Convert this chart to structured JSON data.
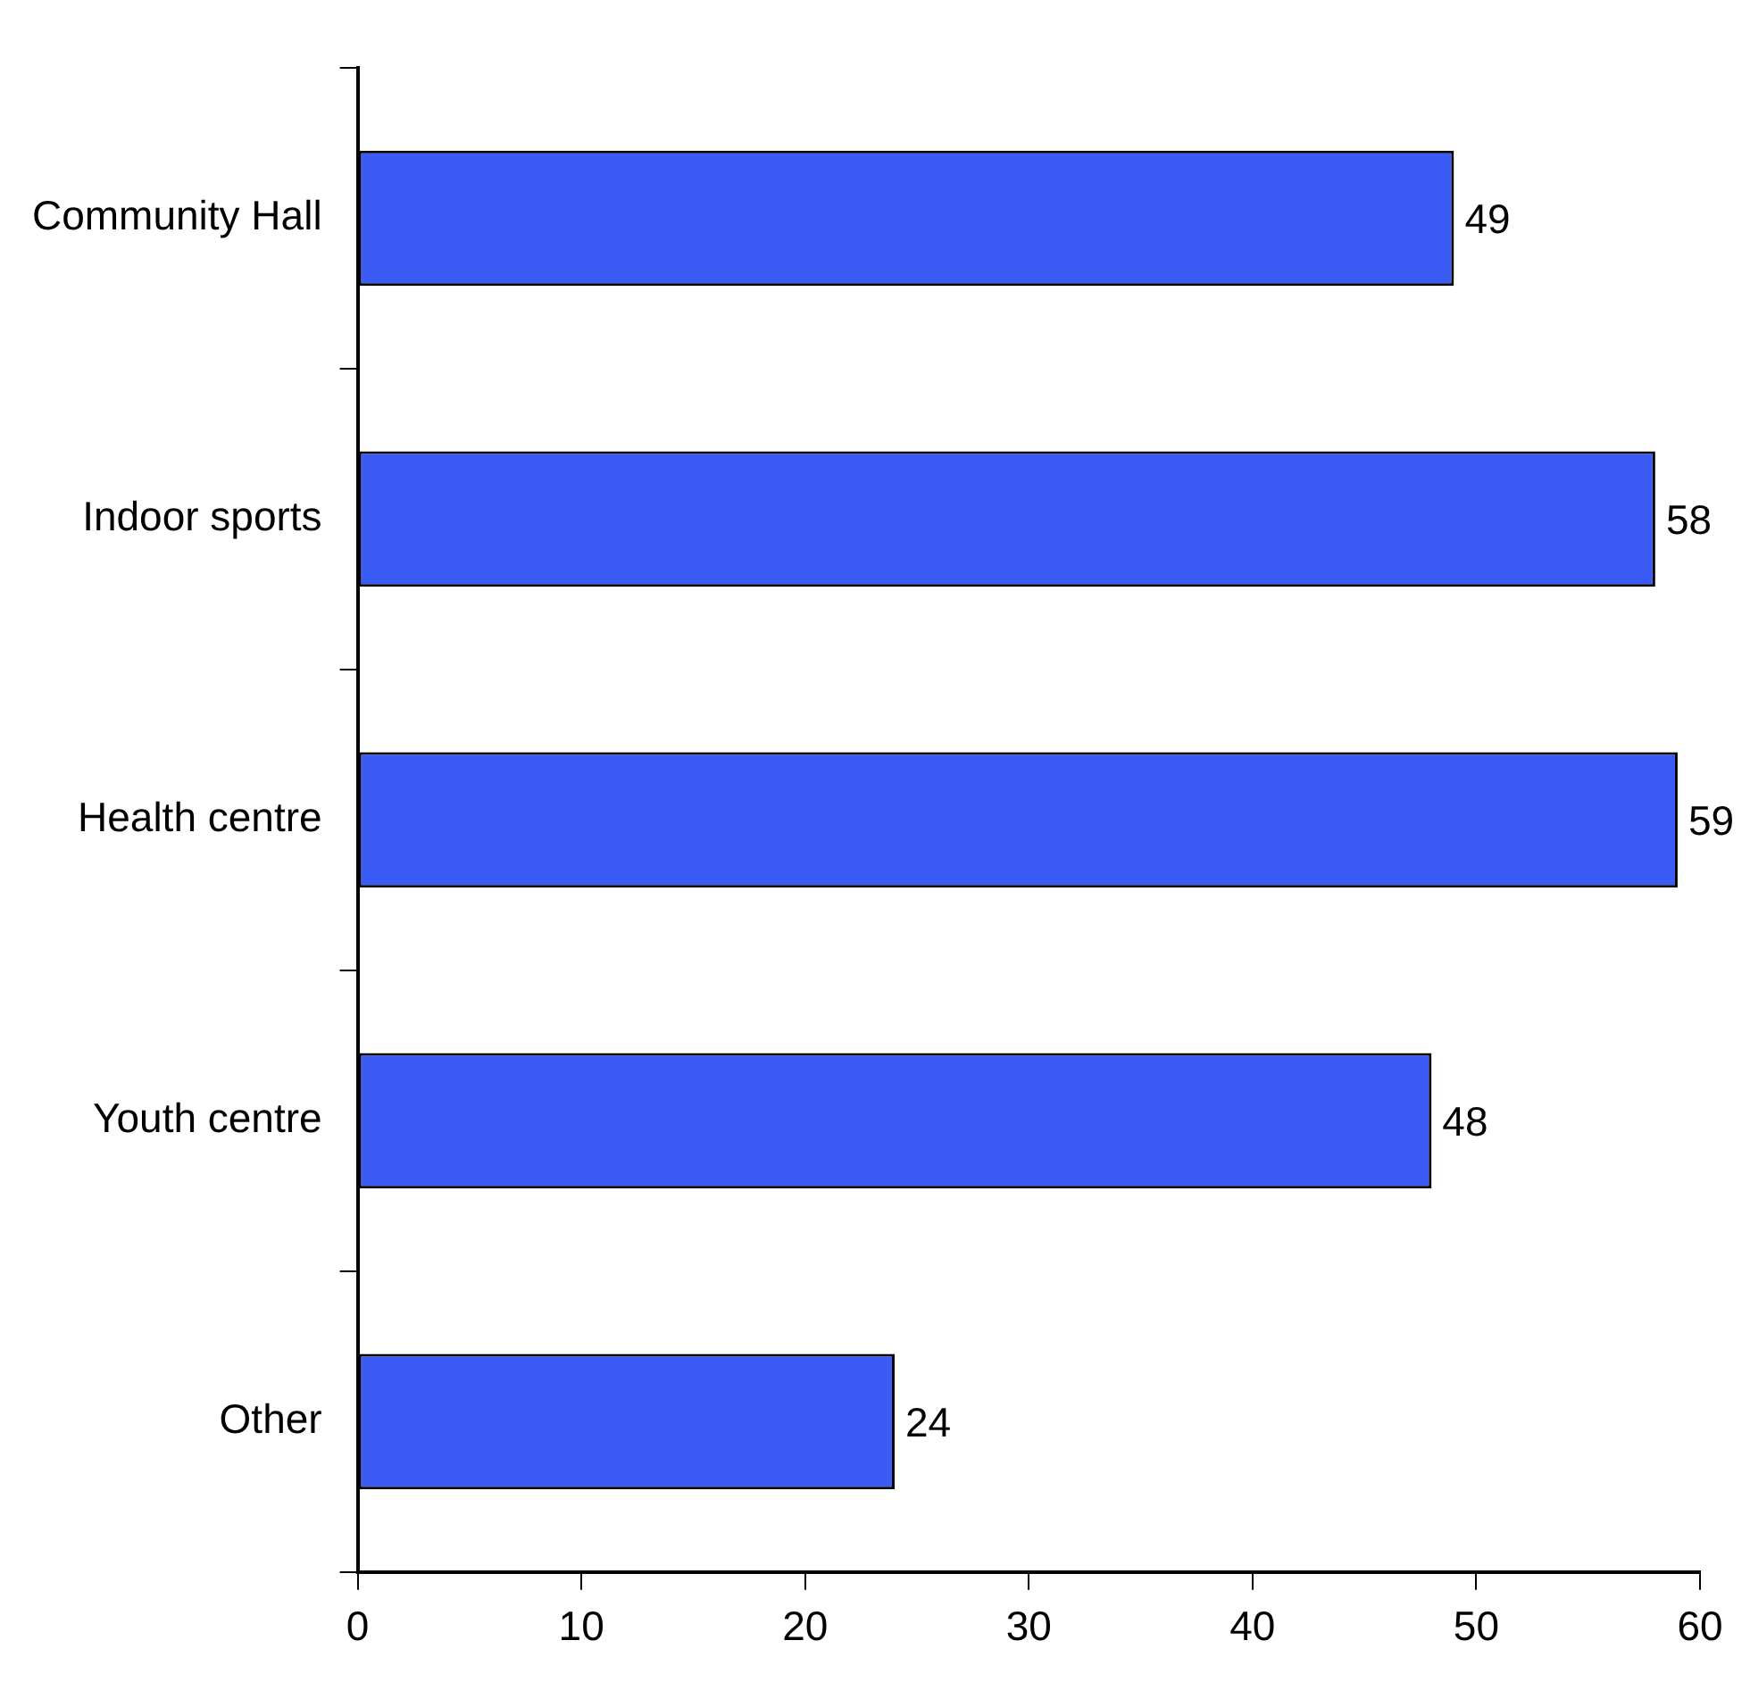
{
  "chart_data": {
    "type": "bar",
    "orientation": "horizontal",
    "categories": [
      "Community Hall",
      "Indoor sports",
      "Health centre",
      "Youth centre",
      "Other"
    ],
    "values": [
      49,
      58,
      59,
      48,
      24
    ],
    "color": "#3a5cf5",
    "xlim": [
      0,
      60
    ],
    "xticks": [
      0,
      10,
      20,
      30,
      40,
      50,
      60
    ],
    "data_labels": true,
    "grid": false,
    "legend": false
  }
}
